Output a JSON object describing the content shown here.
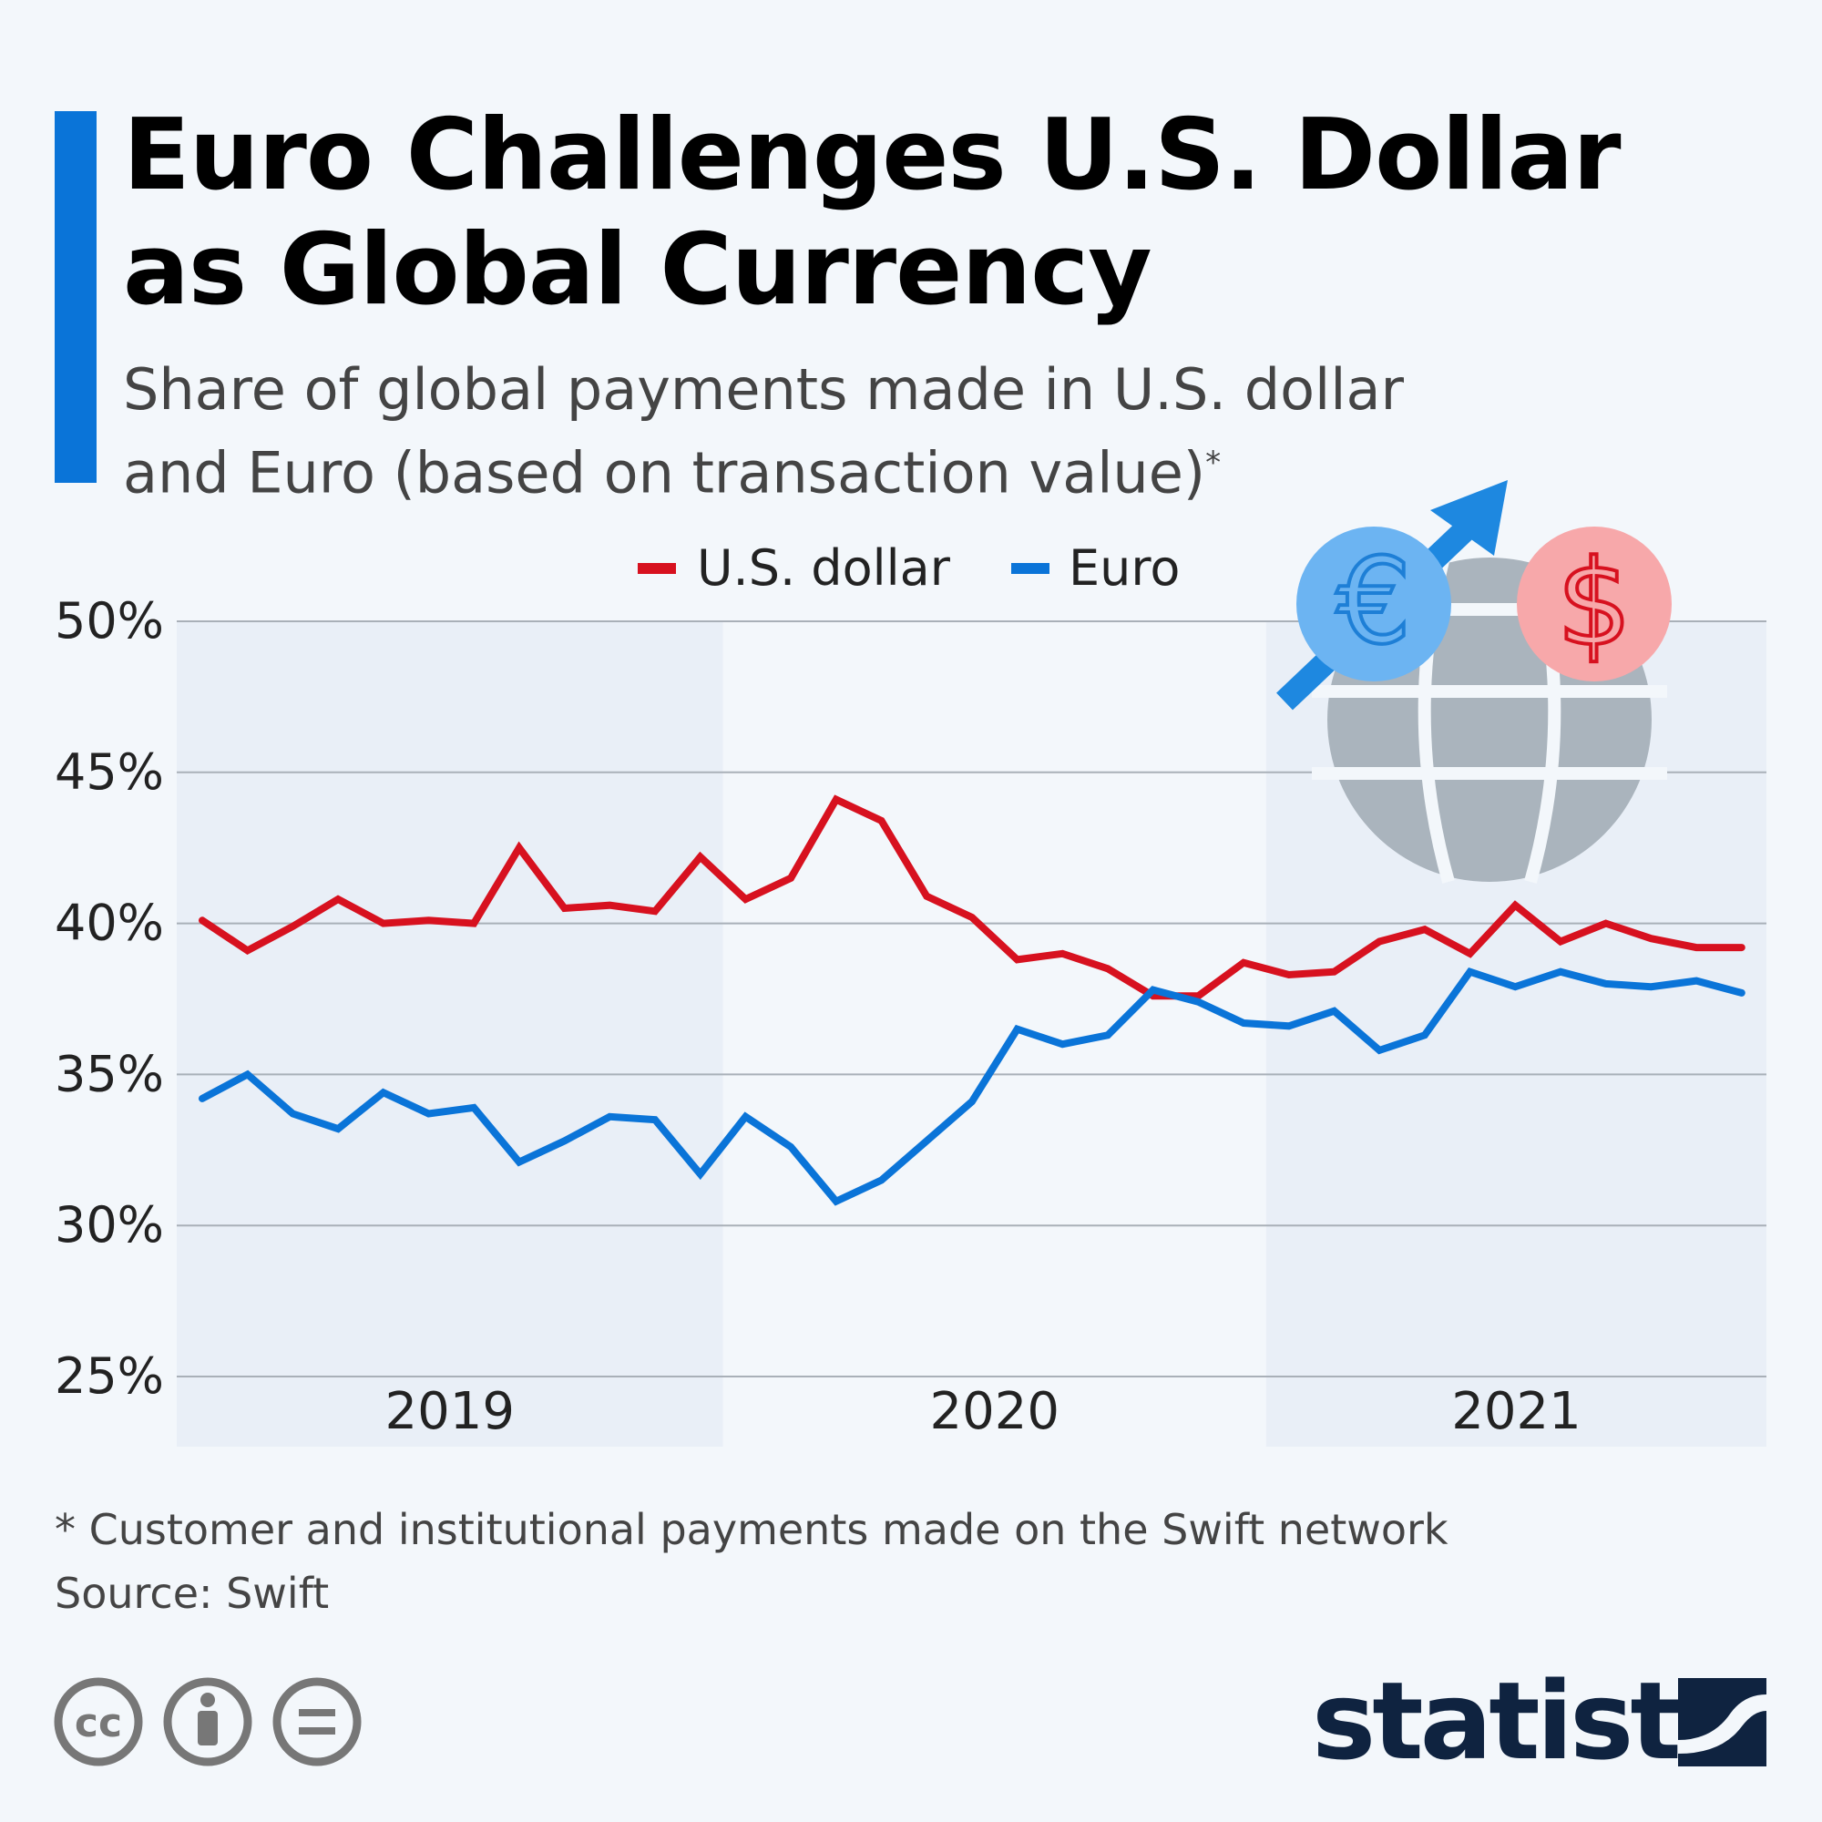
{
  "title_line1": "Euro Challenges U.S. Dollar",
  "title_line2": "as Global Currency",
  "subtitle_line1": "Share of global payments made in U.S. dollar",
  "subtitle_line2": "and Euro (based on transaction value)",
  "subtitle_mark": "*",
  "footnote": "* Customer and institutional payments made on the Swift network",
  "source": "Source: Swift",
  "brand": "statista",
  "license_icons": [
    "cc-icon",
    "by-icon",
    "nd-icon"
  ],
  "colors": {
    "usd": "#d7111f",
    "euro": "#0a74d8",
    "accent": "#0a74d8"
  },
  "chart_data": {
    "type": "line",
    "ylim": [
      25,
      50
    ],
    "yticks": [
      50,
      45,
      40,
      35,
      30,
      25
    ],
    "ytick_labels": [
      "50%",
      "45%",
      "40%",
      "35%",
      "30%",
      "25%"
    ],
    "grid": true,
    "legend": "top",
    "year_labels": [
      "2019",
      "2020",
      "2021"
    ],
    "x": [
      "2019-01",
      "2019-02",
      "2019-03",
      "2019-04",
      "2019-05",
      "2019-06",
      "2019-07",
      "2019-08",
      "2019-09",
      "2019-10",
      "2019-11",
      "2019-12",
      "2020-01",
      "2020-02",
      "2020-03",
      "2020-04",
      "2020-05",
      "2020-06",
      "2020-07",
      "2020-08",
      "2020-09",
      "2020-10",
      "2020-11",
      "2020-12",
      "2021-01",
      "2021-02",
      "2021-03",
      "2021-04",
      "2021-05",
      "2021-06",
      "2021-07",
      "2021-08",
      "2021-09",
      "2021-10",
      "2021-11"
    ],
    "series": [
      {
        "name": "U.S. dollar",
        "color": "#d7111f",
        "values": [
          40.1,
          39.1,
          39.9,
          40.8,
          40.0,
          40.1,
          40.0,
          42.5,
          40.5,
          40.6,
          40.4,
          42.2,
          40.8,
          41.5,
          44.1,
          43.4,
          40.9,
          40.2,
          38.8,
          39.0,
          38.5,
          37.6,
          37.6,
          38.7,
          38.3,
          38.4,
          39.4,
          39.8,
          39.0,
          40.6,
          39.4,
          40.0,
          39.5,
          39.2,
          39.2
        ]
      },
      {
        "name": "Euro",
        "color": "#0a74d8",
        "values": [
          34.2,
          35.0,
          33.7,
          33.2,
          34.4,
          33.7,
          33.9,
          32.1,
          32.8,
          33.6,
          33.5,
          31.7,
          33.6,
          32.6,
          30.8,
          31.5,
          32.8,
          34.1,
          36.5,
          36.0,
          36.3,
          37.8,
          37.4,
          36.7,
          36.6,
          37.1,
          35.8,
          36.3,
          38.4,
          37.9,
          38.4,
          38.0,
          37.9,
          38.1,
          37.7
        ]
      }
    ]
  }
}
